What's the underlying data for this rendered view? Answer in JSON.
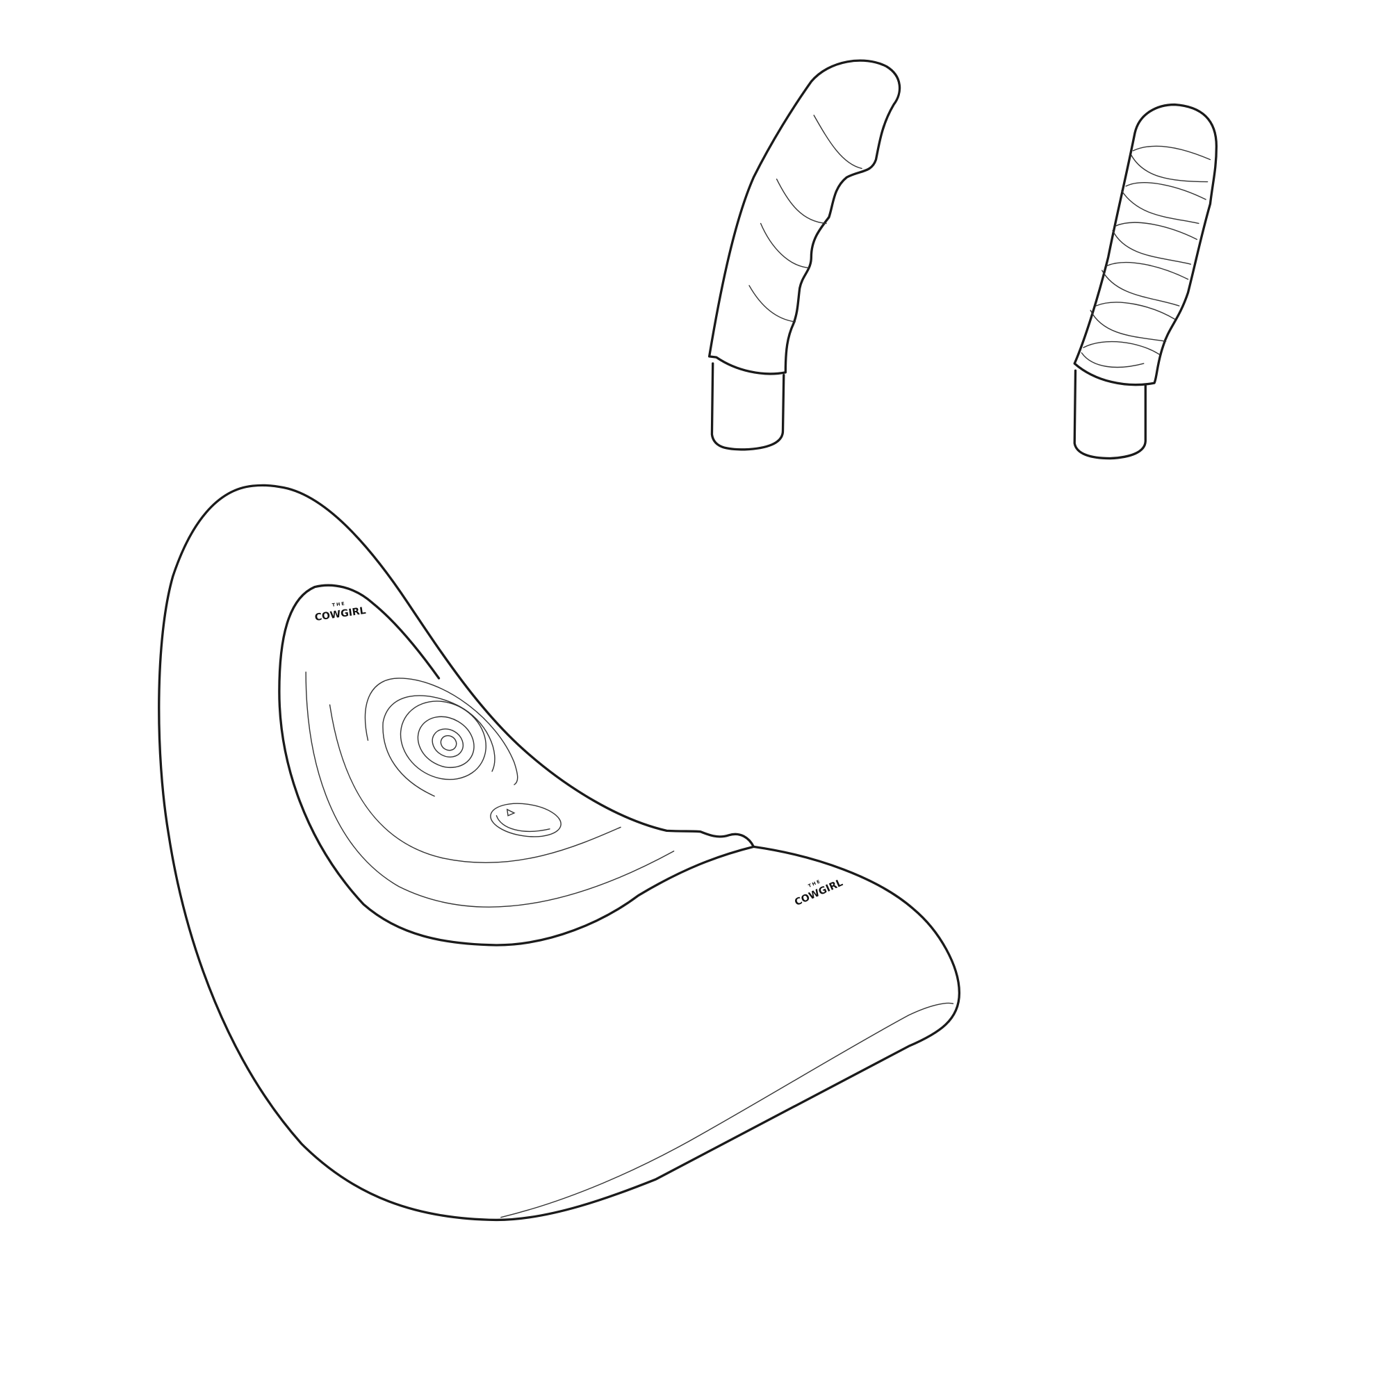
{
  "logos": [
    {
      "small": "THE",
      "main": "COWGIRL"
    },
    {
      "small": "THE",
      "main": "COWGIRL"
    }
  ]
}
